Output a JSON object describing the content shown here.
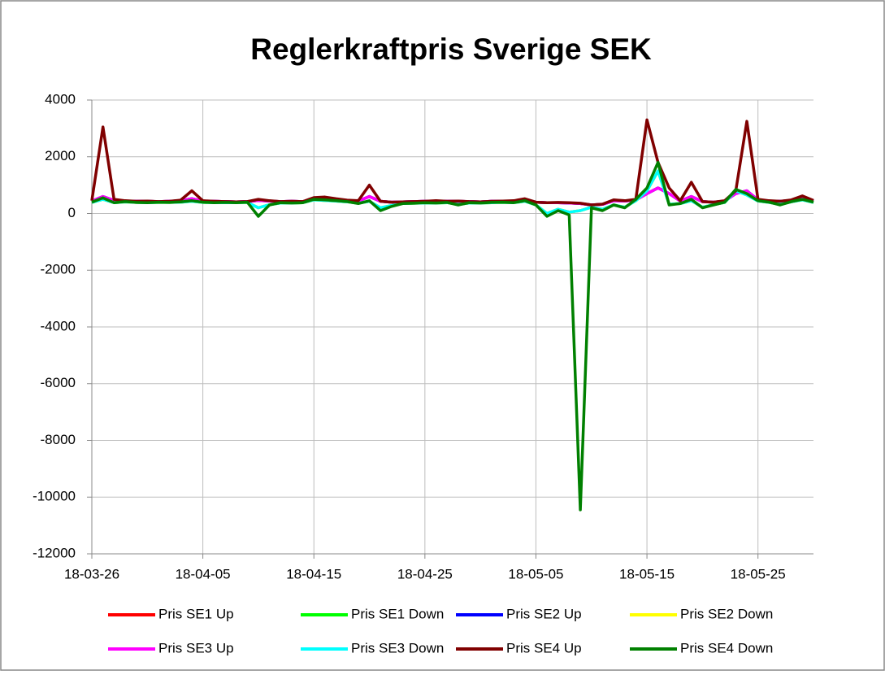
{
  "chart_data": {
    "type": "line",
    "title": "Reglerkraftpris Sverige SEK",
    "x": [
      "18-03-26",
      "18-03-27",
      "18-03-28",
      "18-03-29",
      "18-03-30",
      "18-03-31",
      "18-04-01",
      "18-04-02",
      "18-04-03",
      "18-04-04",
      "18-04-05",
      "18-04-06",
      "18-04-07",
      "18-04-08",
      "18-04-09",
      "18-04-10",
      "18-04-11",
      "18-04-12",
      "18-04-13",
      "18-04-14",
      "18-04-15",
      "18-04-16",
      "18-04-17",
      "18-04-18",
      "18-04-19",
      "18-04-20",
      "18-04-21",
      "18-04-22",
      "18-04-23",
      "18-04-24",
      "18-04-25",
      "18-04-26",
      "18-04-27",
      "18-04-28",
      "18-04-29",
      "18-04-30",
      "18-05-01",
      "18-05-02",
      "18-05-03",
      "18-05-04",
      "18-05-05",
      "18-05-06",
      "18-05-07",
      "18-05-08",
      "18-05-09",
      "18-05-10",
      "18-05-11",
      "18-05-12",
      "18-05-13",
      "18-05-14",
      "18-05-15",
      "18-05-16",
      "18-05-17",
      "18-05-18",
      "18-05-19",
      "18-05-20",
      "18-05-21",
      "18-05-22",
      "18-05-23",
      "18-05-24",
      "18-05-25",
      "18-05-26",
      "18-05-27",
      "18-05-28",
      "18-05-29",
      "18-05-30"
    ],
    "series": [
      {
        "name": "Pris SE1 Up",
        "color": "#ff0000",
        "values": [
          440,
          600,
          460,
          440,
          430,
          430,
          420,
          430,
          450,
          520,
          440,
          430,
          420,
          410,
          420,
          460,
          440,
          420,
          430,
          420,
          520,
          540,
          500,
          460,
          440,
          600,
          430,
          400,
          410,
          420,
          430,
          440,
          430,
          430,
          420,
          410,
          430,
          430,
          440,
          480,
          400,
          380,
          380,
          370,
          350,
          300,
          320,
          450,
          440,
          480,
          700,
          900,
          700,
          440,
          600,
          420,
          400,
          440,
          700,
          800,
          480,
          440,
          430,
          460,
          580,
          450
        ]
      },
      {
        "name": "Pris SE1 Down",
        "color": "#00ff00",
        "values": [
          390,
          500,
          380,
          410,
          390,
          380,
          390,
          390,
          400,
          430,
          390,
          380,
          380,
          380,
          390,
          200,
          310,
          370,
          370,
          380,
          480,
          460,
          440,
          410,
          360,
          430,
          200,
          280,
          350,
          360,
          370,
          370,
          380,
          320,
          370,
          370,
          380,
          390,
          380,
          430,
          300,
          0,
          150,
          50,
          100,
          220,
          150,
          300,
          220,
          450,
          800,
          1500,
          320,
          350,
          450,
          220,
          310,
          390,
          800,
          650,
          440,
          390,
          320,
          410,
          480,
          390
        ]
      },
      {
        "name": "Pris SE2 Up",
        "color": "#0000ff",
        "values": [
          440,
          600,
          460,
          440,
          430,
          430,
          420,
          430,
          450,
          520,
          440,
          430,
          420,
          410,
          420,
          460,
          440,
          420,
          430,
          420,
          520,
          540,
          500,
          460,
          440,
          600,
          430,
          400,
          410,
          420,
          430,
          440,
          430,
          430,
          420,
          410,
          430,
          430,
          440,
          480,
          400,
          380,
          380,
          370,
          350,
          300,
          320,
          450,
          440,
          480,
          700,
          900,
          700,
          440,
          600,
          420,
          400,
          440,
          700,
          800,
          480,
          440,
          430,
          460,
          580,
          450
        ]
      },
      {
        "name": "Pris SE2 Down",
        "color": "#ffff00",
        "values": [
          390,
          500,
          380,
          410,
          390,
          380,
          390,
          390,
          400,
          430,
          390,
          380,
          380,
          380,
          390,
          200,
          310,
          370,
          370,
          380,
          480,
          460,
          440,
          410,
          360,
          430,
          200,
          280,
          350,
          360,
          370,
          370,
          380,
          320,
          370,
          370,
          380,
          390,
          380,
          430,
          300,
          0,
          150,
          50,
          100,
          220,
          150,
          300,
          220,
          450,
          800,
          1500,
          320,
          350,
          450,
          220,
          310,
          390,
          800,
          650,
          440,
          390,
          320,
          410,
          480,
          390
        ]
      },
      {
        "name": "Pris SE3 Up",
        "color": "#ff00ff",
        "values": [
          440,
          600,
          460,
          440,
          430,
          430,
          420,
          430,
          450,
          520,
          440,
          430,
          420,
          410,
          420,
          460,
          440,
          420,
          430,
          420,
          520,
          540,
          500,
          460,
          440,
          600,
          430,
          400,
          410,
          420,
          430,
          440,
          430,
          430,
          420,
          410,
          430,
          430,
          440,
          480,
          400,
          380,
          380,
          370,
          350,
          300,
          320,
          450,
          440,
          480,
          700,
          900,
          700,
          440,
          600,
          420,
          400,
          440,
          700,
          800,
          480,
          440,
          430,
          460,
          580,
          450
        ]
      },
      {
        "name": "Pris SE3 Down",
        "color": "#00ffff",
        "values": [
          390,
          500,
          380,
          410,
          390,
          380,
          390,
          390,
          400,
          430,
          390,
          380,
          380,
          380,
          390,
          200,
          310,
          370,
          370,
          380,
          480,
          460,
          440,
          410,
          360,
          430,
          200,
          280,
          350,
          360,
          370,
          370,
          380,
          320,
          370,
          370,
          380,
          390,
          380,
          430,
          300,
          0,
          150,
          50,
          100,
          220,
          150,
          300,
          220,
          450,
          800,
          1500,
          320,
          350,
          450,
          220,
          310,
          390,
          800,
          650,
          440,
          390,
          320,
          410,
          480,
          390
        ]
      },
      {
        "name": "Pris SE4 Up",
        "color": "#800000",
        "values": [
          450,
          3050,
          500,
          450,
          430,
          440,
          420,
          430,
          470,
          800,
          450,
          430,
          420,
          410,
          420,
          500,
          450,
          420,
          430,
          420,
          560,
          580,
          520,
          470,
          450,
          1000,
          430,
          400,
          410,
          420,
          430,
          450,
          430,
          440,
          420,
          410,
          430,
          440,
          450,
          520,
          400,
          380,
          390,
          380,
          360,
          300,
          330,
          480,
          450,
          500,
          3300,
          1800,
          900,
          450,
          1100,
          420,
          400,
          450,
          800,
          3250,
          500,
          450,
          430,
          480,
          620,
          460
        ]
      },
      {
        "name": "Pris SE4 Down",
        "color": "#008000",
        "values": [
          400,
          550,
          380,
          420,
          390,
          380,
          400,
          390,
          410,
          450,
          400,
          380,
          390,
          380,
          400,
          -100,
          300,
          380,
          370,
          380,
          500,
          480,
          450,
          420,
          350,
          450,
          100,
          250,
          350,
          360,
          380,
          370,
          390,
          300,
          380,
          370,
          390,
          400,
          380,
          450,
          300,
          -100,
          100,
          -50,
          -10450,
          200,
          100,
          300,
          200,
          500,
          900,
          1800,
          300,
          350,
          500,
          200,
          300,
          400,
          850,
          700,
          450,
          400,
          300,
          420,
          500,
          400
        ]
      }
    ],
    "xlim": [
      "18-03-26",
      "18-05-30"
    ],
    "xticks": [
      "18-03-26",
      "18-04-05",
      "18-04-15",
      "18-04-25",
      "18-05-05",
      "18-05-15",
      "18-05-25"
    ],
    "ylim": [
      -12000,
      4000
    ],
    "yticks": [
      -12000,
      -10000,
      -8000,
      -6000,
      -4000,
      -2000,
      0,
      2000,
      4000
    ],
    "grid": true,
    "legend": "bottom"
  }
}
